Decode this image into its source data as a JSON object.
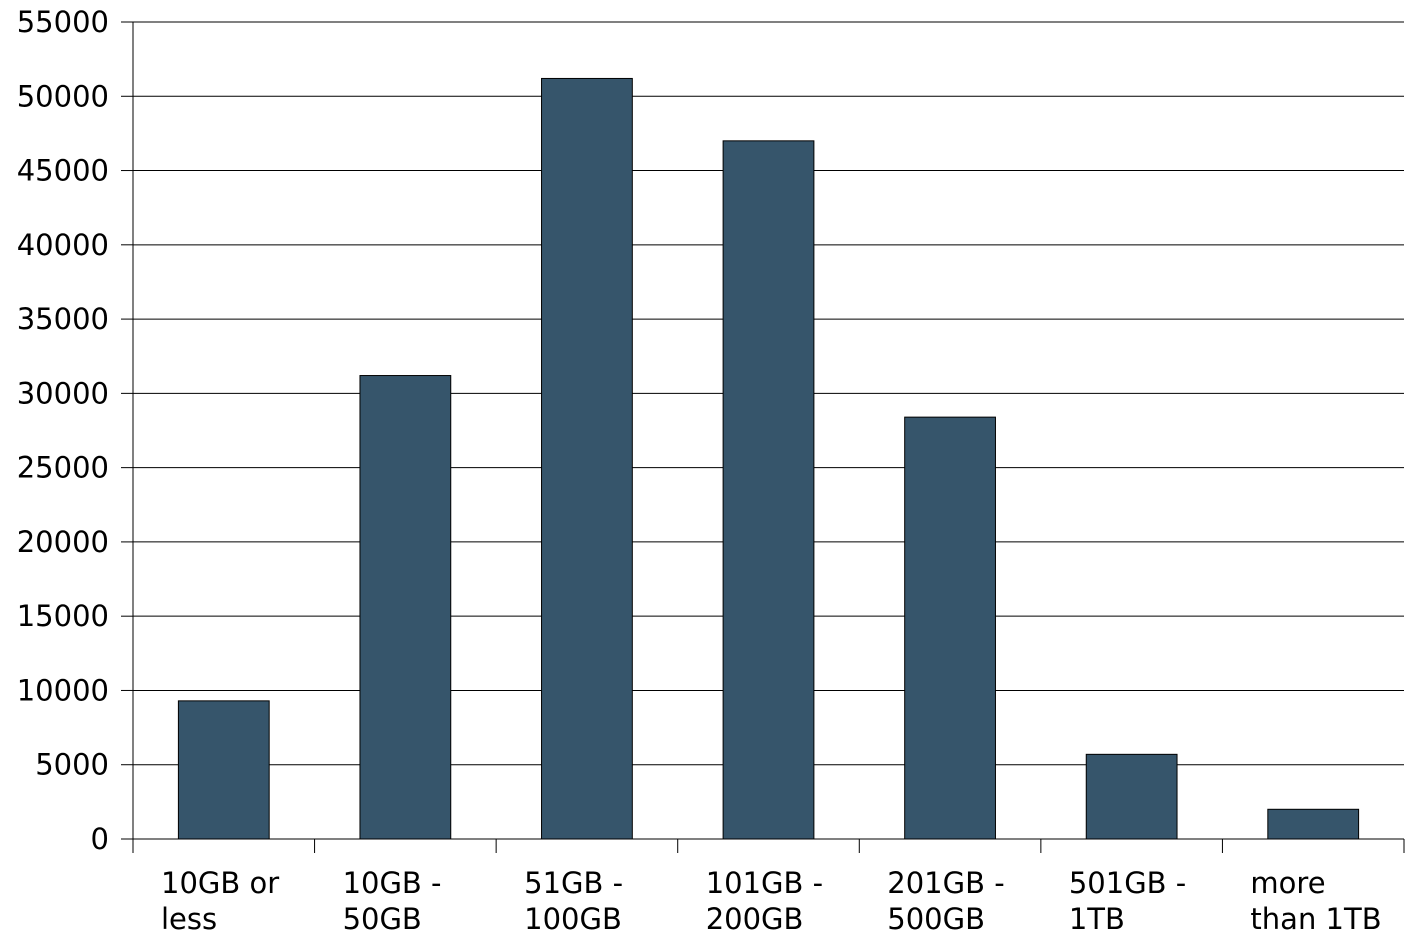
{
  "chart_data": {
    "type": "bar",
    "title": "",
    "xlabel": "",
    "ylabel": "",
    "categories": [
      [
        "10GB or",
        "less"
      ],
      [
        "10GB -",
        "50GB"
      ],
      [
        "51GB -",
        "100GB"
      ],
      [
        "101GB -",
        "200GB"
      ],
      [
        "201GB -",
        "500GB"
      ],
      [
        "501GB -",
        "1TB"
      ],
      [
        "more",
        "than 1TB"
      ]
    ],
    "series": [
      {
        "values": [
          9300,
          31200,
          51200,
          47000,
          28400,
          5700,
          2000
        ],
        "color": "#36556b"
      }
    ],
    "ylim": [
      0,
      55000
    ],
    "yticks": [
      0,
      5000,
      10000,
      15000,
      20000,
      25000,
      30000,
      35000,
      40000,
      45000,
      50000,
      55000
    ],
    "grid": true,
    "legend": "none"
  }
}
